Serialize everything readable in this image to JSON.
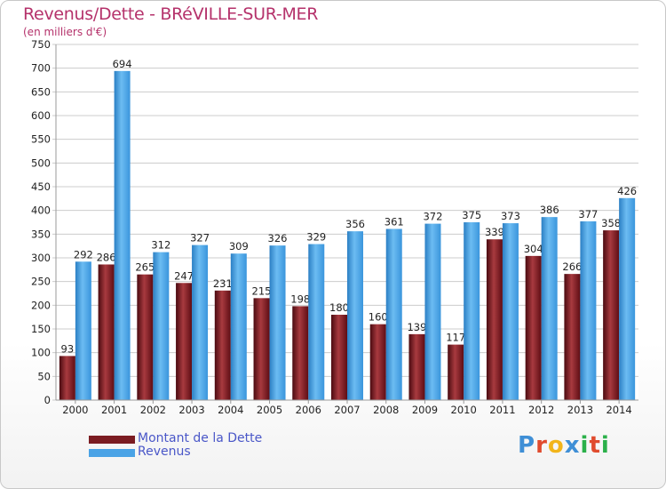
{
  "title": "Revenus/Dette - BRéVILLE-SUR-MER",
  "subtitle": "(en milliers d'€)",
  "brand": {
    "text": "Proxiti",
    "letters": [
      "P",
      "r",
      "o",
      "x",
      "i",
      "t",
      "i"
    ],
    "colors": [
      "#3f8fd6",
      "#e04b2e",
      "#f2b51b",
      "#3f8fd6",
      "#2bb04a",
      "#e04b2e",
      "#2bb04a"
    ]
  },
  "legend": [
    {
      "label": "Montant de la Dette",
      "color": "#7b1c22"
    },
    {
      "label": "Revenus",
      "color": "#4aa3e6"
    }
  ],
  "chart_data": {
    "type": "bar",
    "categories": [
      "2000",
      "2001",
      "2002",
      "2003",
      "2004",
      "2005",
      "2006",
      "2007",
      "2008",
      "2009",
      "2010",
      "2011",
      "2012",
      "2013",
      "2014"
    ],
    "series": [
      {
        "name": "Montant de la Dette",
        "color": "#7b1c22",
        "values": [
          93,
          286,
          265,
          247,
          231,
          215,
          198,
          180,
          160,
          139,
          117,
          339,
          304,
          266,
          358
        ]
      },
      {
        "name": "Revenus",
        "color": "#4aa3e6",
        "values": [
          292,
          694,
          312,
          327,
          309,
          326,
          329,
          356,
          361,
          372,
          375,
          373,
          386,
          377,
          426
        ]
      }
    ],
    "ylim": [
      0,
      750
    ],
    "yticks": [
      0,
      50,
      100,
      150,
      200,
      250,
      300,
      350,
      400,
      450,
      500,
      550,
      600,
      650,
      700,
      750
    ],
    "grid": true,
    "legend_position": "bottom-left"
  }
}
